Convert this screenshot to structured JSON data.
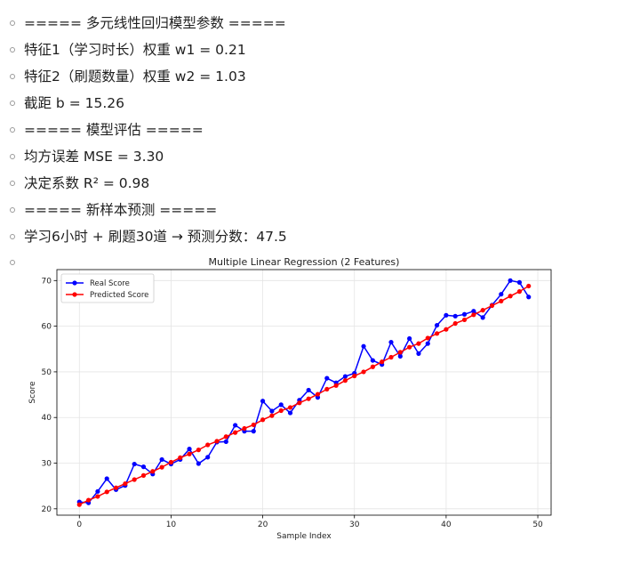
{
  "output_lines": [
    "===== 多元线性回归模型参数 =====",
    "特征1（学习时长）权重 w1 = 0.21",
    "特征2（刷题数量）权重 w2 = 1.03",
    "截距 b = 15.26",
    "===== 模型评估 =====",
    "均方误差 MSE = 3.30",
    "决定系数 R²  = 0.98",
    "===== 新样本预测 =====",
    "学习6小时 + 刷题30道 → 预测分数：47.5"
  ],
  "chart_data": {
    "type": "line",
    "title": "Multiple Linear Regression (2 Features)",
    "xlabel": "Sample Index",
    "ylabel": "Score",
    "xlim": [
      -2.45,
      51.45
    ],
    "ylim": [
      18.6,
      72.4
    ],
    "xticks": [
      0,
      10,
      20,
      30,
      40,
      50
    ],
    "yticks": [
      20,
      30,
      40,
      50,
      60,
      70
    ],
    "grid": true,
    "legend_position": "upper-left",
    "x": [
      0,
      1,
      2,
      3,
      4,
      5,
      6,
      7,
      8,
      9,
      10,
      11,
      12,
      13,
      14,
      15,
      16,
      17,
      18,
      19,
      20,
      21,
      22,
      23,
      24,
      25,
      26,
      27,
      28,
      29,
      30,
      31,
      32,
      33,
      34,
      35,
      36,
      37,
      38,
      39,
      40,
      41,
      42,
      43,
      44,
      45,
      46,
      47,
      48,
      49
    ],
    "series": [
      {
        "name": "Real Score",
        "color": "#0000ff",
        "values": [
          21.5,
          21.3,
          23.8,
          26.6,
          24.2,
          25.1,
          29.8,
          29.2,
          27.6,
          30.8,
          29.8,
          30.8,
          33.1,
          29.9,
          31.3,
          34.6,
          34.7,
          38.3,
          37.0,
          37.0,
          43.6,
          41.4,
          42.8,
          41.0,
          43.8,
          46.0,
          44.4,
          48.6,
          47.6,
          49.0,
          49.7,
          55.6,
          52.5,
          51.6,
          56.5,
          53.4,
          57.3,
          54.0,
          56.2,
          60.2,
          62.4,
          62.2,
          62.6,
          63.3,
          61.9,
          64.6,
          67.0,
          70.0,
          69.6,
          66.4
        ]
      },
      {
        "name": "Predicted Score",
        "color": "#ff0000",
        "values": [
          20.9,
          21.9,
          22.7,
          23.7,
          24.6,
          25.5,
          26.4,
          27.3,
          28.2,
          29.1,
          30.2,
          31.2,
          32.0,
          32.9,
          34.0,
          34.8,
          35.8,
          36.7,
          37.6,
          38.4,
          39.5,
          40.4,
          41.5,
          42.2,
          43.2,
          44.1,
          45.1,
          46.2,
          47.0,
          48.1,
          49.1,
          50.0,
          51.1,
          52.2,
          53.2,
          54.3,
          55.4,
          56.2,
          57.4,
          58.4,
          59.3,
          60.6,
          61.4,
          62.5,
          63.5,
          64.5,
          65.5,
          66.6,
          67.6,
          68.8
        ]
      }
    ]
  }
}
